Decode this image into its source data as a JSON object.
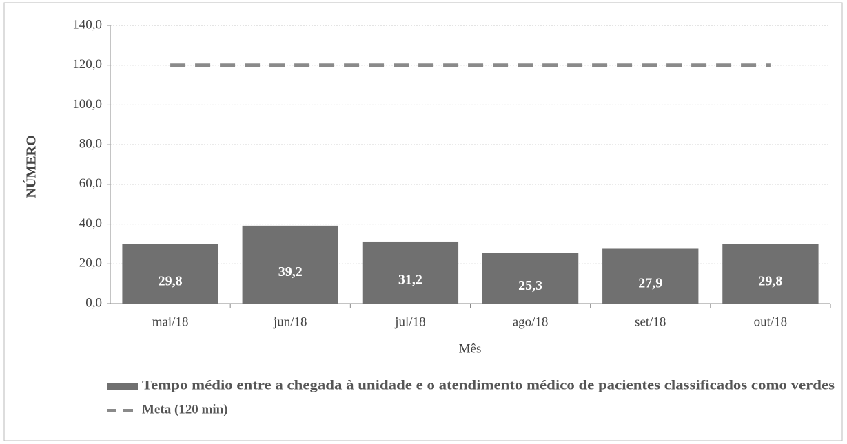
{
  "chart_data": {
    "type": "bar",
    "categories": [
      "mai/18",
      "jun/18",
      "jul/18",
      "ago/18",
      "set/18",
      "out/18"
    ],
    "series": [
      {
        "name": "Tempo médio entre a chegada à unidade e o atendimento médico de pacientes classificados como verdes",
        "type": "bar",
        "color": "#707070",
        "values": [
          29.8,
          39.2,
          31.2,
          25.3,
          27.9,
          29.8
        ],
        "value_labels": [
          "29,8",
          "39,2",
          "31,2",
          "25,3",
          "27,9",
          "29,8"
        ]
      },
      {
        "name": "Meta (120 min)",
        "type": "line",
        "line_style": "dashed",
        "color": "#8a8a8a",
        "values": [
          120,
          120,
          120,
          120,
          120,
          120
        ]
      }
    ],
    "y_label": "NÚMERO",
    "x_label": "Mês",
    "ylim": [
      0,
      140
    ],
    "yticks": [
      {
        "value": 0,
        "label": "0,0"
      },
      {
        "value": 20,
        "label": "20,0"
      },
      {
        "value": 40,
        "label": "40,0"
      },
      {
        "value": 60,
        "label": "60,0"
      },
      {
        "value": 80,
        "label": "80,0"
      },
      {
        "value": 100,
        "label": "100,0"
      },
      {
        "value": 120,
        "label": "120,0"
      },
      {
        "value": 140,
        "label": "140,0"
      }
    ],
    "grid": true,
    "legend": "bottom"
  }
}
